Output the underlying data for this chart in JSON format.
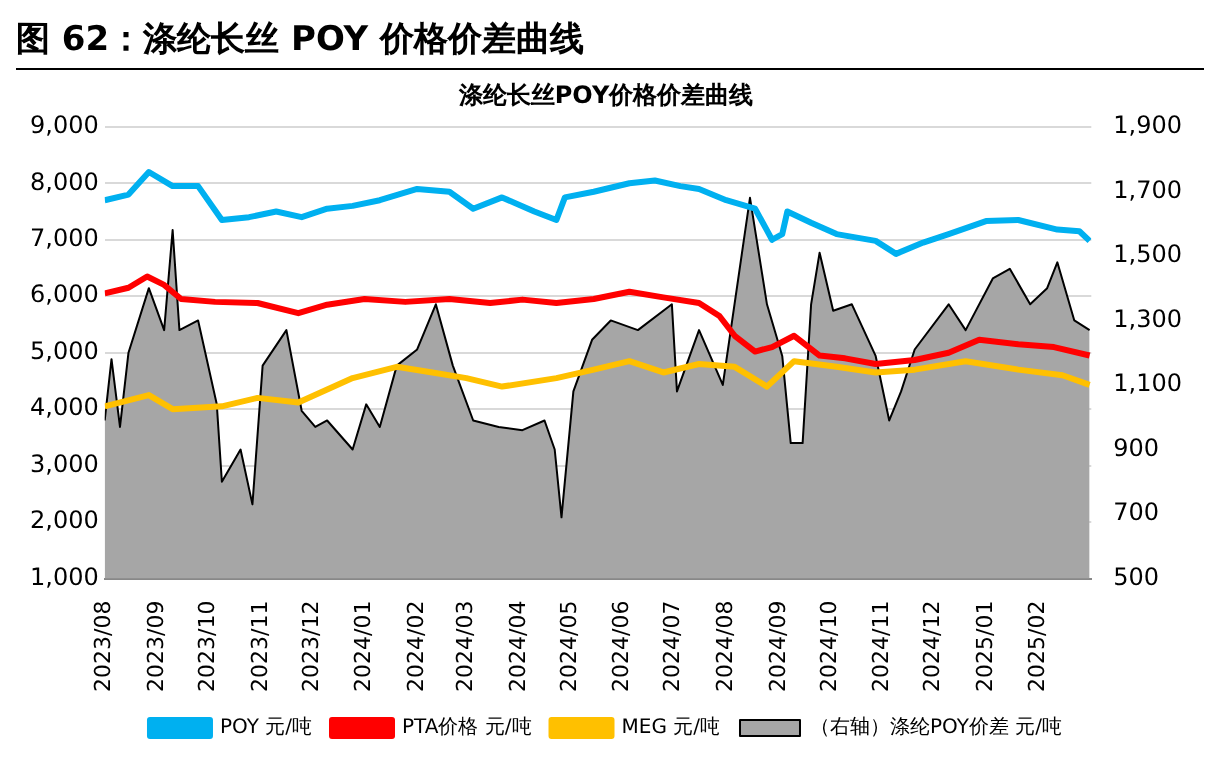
{
  "chart_data": {
    "type": "line",
    "title": "图 62：涤纶长丝 POY 价格价差曲线",
    "subtitle": "涤纶长丝POY价格价差曲线",
    "xlim": [
      "2023-08-01",
      "2025-03-04"
    ],
    "xticks": [
      {
        "value": "2023-08",
        "label": "2023/08"
      },
      {
        "value": "2023-09",
        "label": "2023/09"
      },
      {
        "value": "2023-10",
        "label": "2023/10"
      },
      {
        "value": "2023-11",
        "label": "2023/11"
      },
      {
        "value": "2023-12",
        "label": "2023/12"
      },
      {
        "value": "2024-01",
        "label": "2024/01"
      },
      {
        "value": "2024-02",
        "label": "2024/02"
      },
      {
        "value": "2024-03",
        "label": "2024/03"
      },
      {
        "value": "2024-04",
        "label": "2024/04"
      },
      {
        "value": "2024-05",
        "label": "2024/05"
      },
      {
        "value": "2024-06",
        "label": "2024/06"
      },
      {
        "value": "2024-07",
        "label": "2024/07"
      },
      {
        "value": "2024-08",
        "label": "2024/08"
      },
      {
        "value": "2024-09",
        "label": "2024/09"
      },
      {
        "value": "2024-10",
        "label": "2024/10"
      },
      {
        "value": "2024-11",
        "label": "2024/11"
      },
      {
        "value": "2024-12",
        "label": "2024/12"
      },
      {
        "value": "2025-01",
        "label": "2025/01"
      },
      {
        "value": "2025-02",
        "label": "2025/02"
      }
    ],
    "ylim": [
      1000,
      9000
    ],
    "yticks": [
      {
        "value": 1000,
        "label": "1,000"
      },
      {
        "value": 2000,
        "label": "2,000"
      },
      {
        "value": 3000,
        "label": "3,000"
      },
      {
        "value": 4000,
        "label": "4,000"
      },
      {
        "value": 5000,
        "label": "5,000"
      },
      {
        "value": 6000,
        "label": "6,000"
      },
      {
        "value": 7000,
        "label": "7,000"
      },
      {
        "value": 8000,
        "label": "8,000"
      },
      {
        "value": 9000,
        "label": "9,000"
      }
    ],
    "y2lim": [
      500,
      1900
    ],
    "y2ticks": [
      500,
      700,
      900,
      {
        "value": 1100,
        "label": "1,100"
      },
      {
        "value": 1300,
        "label": "1,300"
      },
      {
        "value": 1500,
        "label": "1,500"
      },
      {
        "value": 1700,
        "label": "1,700"
      },
      {
        "value": 1900,
        "label": "1,900"
      }
    ],
    "grid": "y",
    "legend": "bottom",
    "marker": "none",
    "line_style": "solid",
    "series": [
      {
        "name": "（右轴）涤纶POY价差 元/吨",
        "type": "area",
        "axis": "y2",
        "color": "#a6a6a6",
        "x": [
          "2023-08-01",
          "2023-08-05",
          "2023-08-10",
          "2023-08-15",
          "2023-08-27",
          "2023-09-05",
          "2023-09-10",
          "2023-09-14",
          "2023-09-25",
          "2023-10-06",
          "2023-10-09",
          "2023-10-20",
          "2023-10-27",
          "2023-11-02",
          "2023-11-16",
          "2023-11-25",
          "2023-12-03",
          "2023-12-10",
          "2023-12-25",
          "2024-01-02",
          "2024-01-10",
          "2024-01-20",
          "2024-02-01",
          "2024-02-12",
          "2024-02-22",
          "2024-03-05",
          "2024-03-20",
          "2024-04-03",
          "2024-04-16",
          "2024-04-22",
          "2024-04-26",
          "2024-05-03",
          "2024-05-14",
          "2024-05-25",
          "2024-06-10",
          "2024-06-30",
          "2024-07-03",
          "2024-07-16",
          "2024-07-30",
          "2024-08-15",
          "2024-08-25",
          "2024-09-03",
          "2024-09-08",
          "2024-09-15",
          "2024-09-20",
          "2024-09-25",
          "2024-10-03",
          "2024-10-14",
          "2024-10-28",
          "2024-11-05",
          "2024-11-12",
          "2024-11-20",
          "2024-12-10",
          "2024-12-20",
          "2025-01-05",
          "2025-01-15",
          "2025-01-27",
          "2025-02-06",
          "2025-02-12",
          "2025-02-22",
          "2025-03-03"
        ],
        "values": [
          990,
          1180,
          970,
          1200,
          1400,
          1270,
          1580,
          1270,
          1300,
          1040,
          800,
          900,
          730,
          1160,
          1270,
          1020,
          970,
          990,
          900,
          1040,
          970,
          1160,
          1210,
          1350,
          1160,
          990,
          970,
          960,
          990,
          900,
          690,
          1080,
          1240,
          1300,
          1270,
          1350,
          1080,
          1270,
          1100,
          1680,
          1350,
          1190,
          920,
          920,
          1350,
          1510,
          1330,
          1350,
          1190,
          990,
          1080,
          1210,
          1350,
          1270,
          1430,
          1460,
          1350,
          1400,
          1480,
          1300,
          1270
        ]
      },
      {
        "name": "POY 元/吨",
        "color": "#00b0f0",
        "x": [
          "2023-08-01",
          "2023-08-15",
          "2023-08-27",
          "2023-09-10",
          "2023-09-25",
          "2023-10-09",
          "2023-10-25",
          "2023-11-10",
          "2023-11-25",
          "2023-12-10",
          "2023-12-25",
          "2024-01-10",
          "2024-02-01",
          "2024-02-20",
          "2024-03-05",
          "2024-03-22",
          "2024-04-10",
          "2024-04-23",
          "2024-04-28",
          "2024-05-15",
          "2024-06-05",
          "2024-06-20",
          "2024-07-05",
          "2024-07-16",
          "2024-08-01",
          "2024-08-18",
          "2024-08-28",
          "2024-09-03",
          "2024-09-06",
          "2024-09-20",
          "2024-10-05",
          "2024-10-28",
          "2024-11-09",
          "2024-11-25",
          "2024-12-10",
          "2025-01-01",
          "2025-01-20",
          "2025-02-12",
          "2025-02-25",
          "2025-03-03"
        ],
        "values": [
          7700,
          7800,
          8200,
          7950,
          7950,
          7350,
          7400,
          7500,
          7400,
          7550,
          7600,
          7700,
          7900,
          7850,
          7550,
          7750,
          7500,
          7350,
          7750,
          7850,
          8000,
          8050,
          7950,
          7900,
          7700,
          7550,
          7000,
          7100,
          7500,
          7300,
          7100,
          6980,
          6750,
          6950,
          7100,
          7330,
          7350,
          7180,
          7150,
          6980
        ]
      },
      {
        "name": "PTA价格 元/吨",
        "color": "#ff0000",
        "x": [
          "2023-08-01",
          "2023-08-15",
          "2023-08-26",
          "2023-09-05",
          "2023-09-15",
          "2023-10-05",
          "2023-10-30",
          "2023-11-23",
          "2023-12-10",
          "2024-01-01",
          "2024-01-25",
          "2024-02-20",
          "2024-03-15",
          "2024-04-03",
          "2024-04-23",
          "2024-05-15",
          "2024-06-05",
          "2024-06-25",
          "2024-07-16",
          "2024-07-28",
          "2024-08-06",
          "2024-08-18",
          "2024-08-28",
          "2024-09-10",
          "2024-09-25",
          "2024-10-10",
          "2024-10-28",
          "2024-11-20",
          "2024-12-10",
          "2024-12-28",
          "2025-01-20",
          "2025-02-10",
          "2025-03-03"
        ],
        "values": [
          6050,
          6150,
          6350,
          6200,
          5950,
          5900,
          5880,
          5700,
          5850,
          5950,
          5900,
          5950,
          5880,
          5940,
          5880,
          5950,
          6080,
          5980,
          5880,
          5650,
          5300,
          5020,
          5100,
          5300,
          4950,
          4900,
          4800,
          4870,
          5000,
          5230,
          5150,
          5100,
          4950
        ]
      },
      {
        "name": "MEG 元/吨",
        "color": "#ffc000",
        "x": [
          "2023-08-01",
          "2023-08-27",
          "2023-09-10",
          "2023-10-09",
          "2023-10-30",
          "2023-11-23",
          "2023-12-10",
          "2023-12-25",
          "2024-01-20",
          "2024-02-10",
          "2024-03-01",
          "2024-03-22",
          "2024-04-23",
          "2024-05-15",
          "2024-06-05",
          "2024-06-25",
          "2024-07-16",
          "2024-08-06",
          "2024-08-25",
          "2024-09-10",
          "2024-10-05",
          "2024-10-28",
          "2024-11-20",
          "2024-12-20",
          "2025-01-20",
          "2025-02-15",
          "2025-03-03"
        ],
        "values": [
          4050,
          4250,
          4000,
          4050,
          4200,
          4120,
          4350,
          4550,
          4750,
          4650,
          4550,
          4400,
          4550,
          4700,
          4850,
          4650,
          4800,
          4750,
          4400,
          4850,
          4750,
          4650,
          4700,
          4850,
          4700,
          4600,
          4430
        ]
      }
    ]
  }
}
